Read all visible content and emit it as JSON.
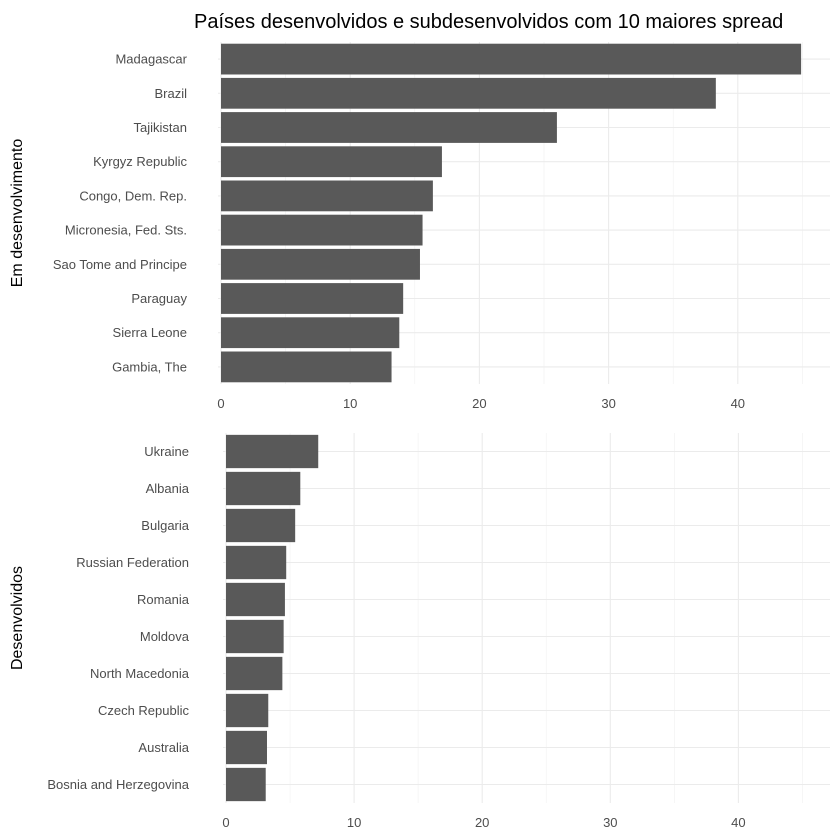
{
  "chart_data": [
    {
      "type": "bar",
      "orientation": "horizontal",
      "title": "Países desenvolvidos e subdesenvolvidos com 10 maiores spread",
      "ylabel": "Em desenvolvimento",
      "xlim": [
        0,
        45
      ],
      "x_ticks": [
        0,
        10,
        20,
        30,
        40
      ],
      "grid": true,
      "bar_color": "#595959",
      "categories": [
        "Madagascar",
        "Brazil",
        "Tajikistan",
        "Kyrgyz Republic",
        "Congo, Dem. Rep.",
        "Micronesia, Fed. Sts.",
        "Sao Tome and Principe",
        "Paraguay",
        "Sierra Leone",
        "Gambia, The"
      ],
      "values": [
        44.9,
        38.3,
        26.0,
        17.1,
        16.4,
        15.6,
        15.4,
        14.1,
        13.8,
        13.2
      ]
    },
    {
      "type": "bar",
      "orientation": "horizontal",
      "ylabel": "Desenvolvidos",
      "xlim": [
        0,
        45
      ],
      "x_ticks": [
        0,
        10,
        20,
        30,
        40
      ],
      "grid": true,
      "bar_color": "#595959",
      "categories": [
        "Ukraine",
        "Albania",
        "Bulgaria",
        "Russian Federation",
        "Romania",
        "Moldova",
        "North Macedonia",
        "Czech Republic",
        "Australia",
        "Bosnia and Herzegovina"
      ],
      "values": [
        7.2,
        5.8,
        5.4,
        4.7,
        4.6,
        4.5,
        4.4,
        3.3,
        3.2,
        3.1
      ]
    }
  ]
}
